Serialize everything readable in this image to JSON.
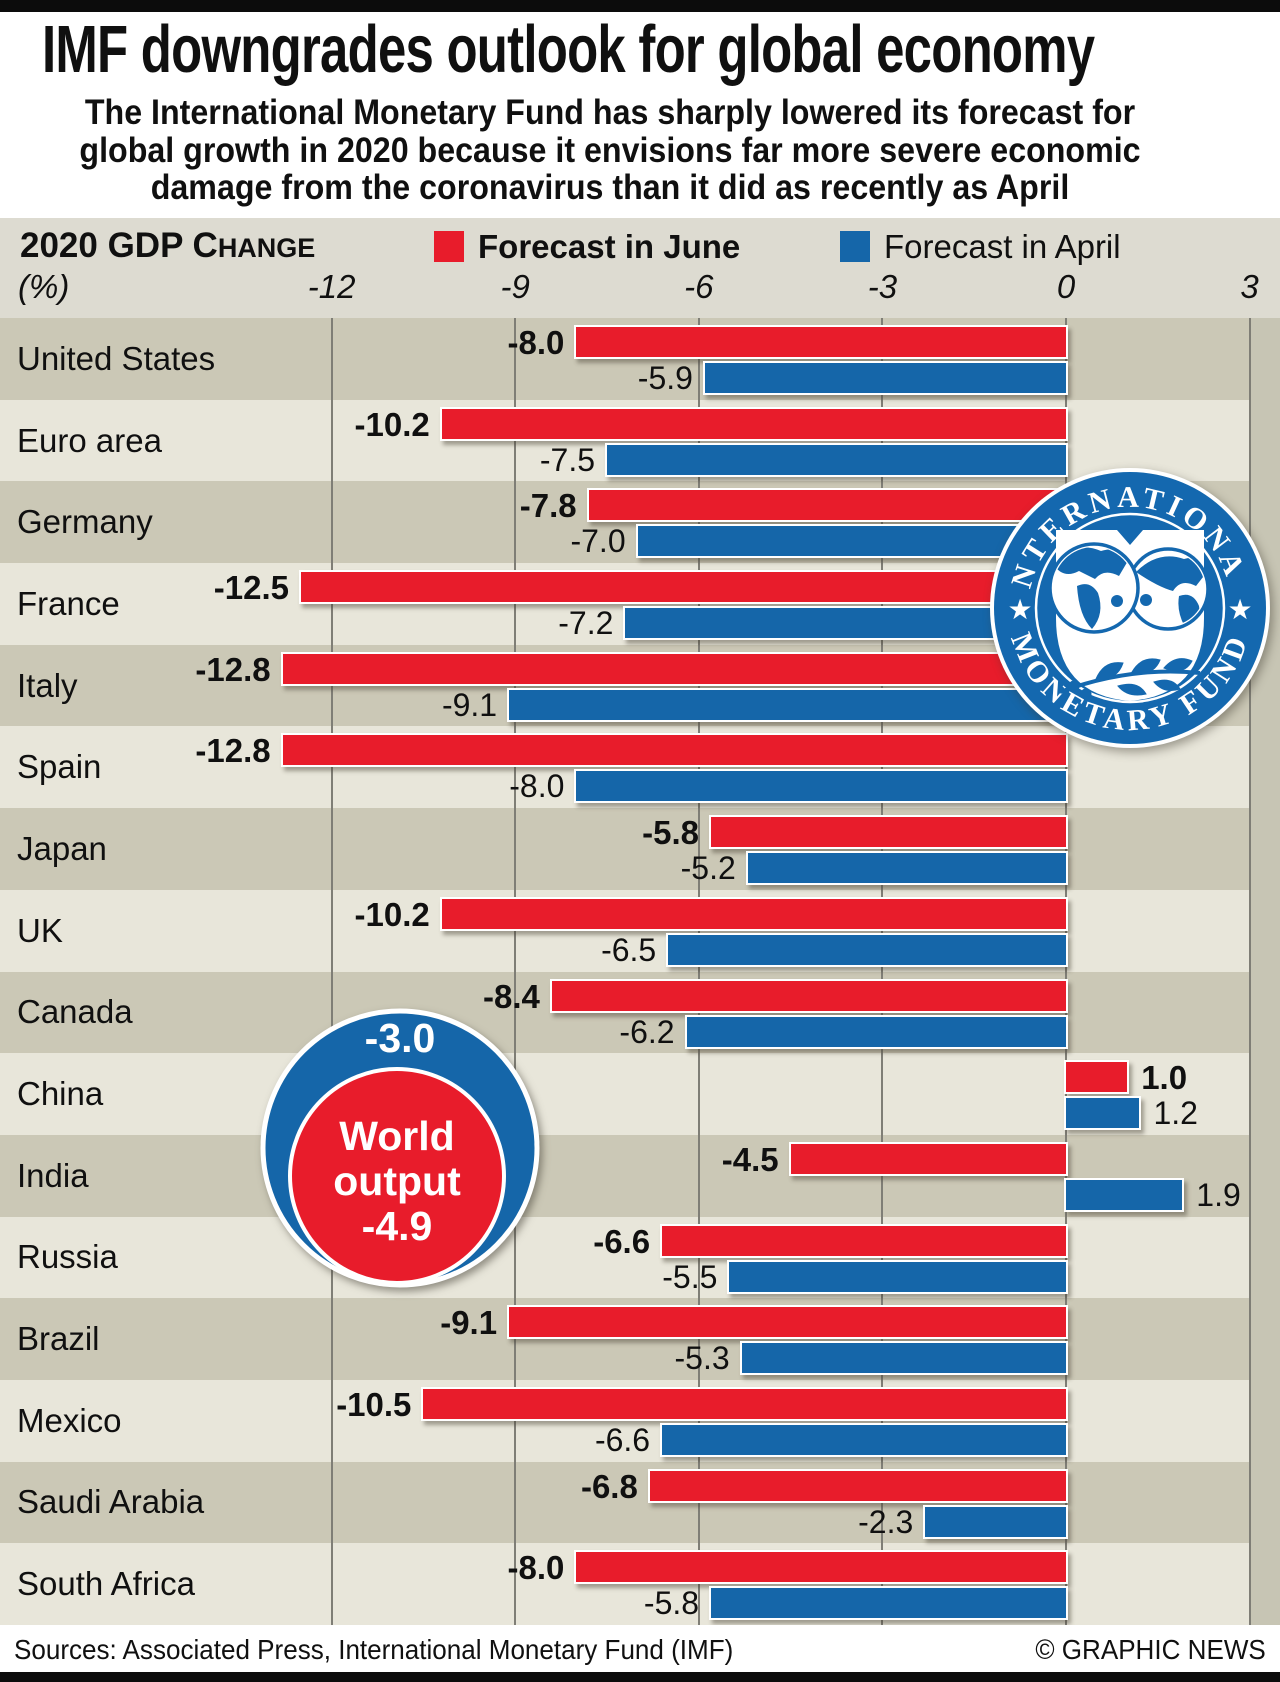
{
  "page": {
    "title": "IMF downgrades outlook for global economy",
    "subtitle_lines": [
      "The International Monetary Fund has sharply lowered its forecast for",
      "global growth in 2020 because it envisions far more severe economic",
      "damage from the coronavirus than it did as recently as April"
    ],
    "source_left": "Sources: Associated Press, International Monetary Fund (IMF)",
    "source_right": "© GRAPHIC NEWS"
  },
  "legend": {
    "axis_title_main": "2020 GDP C",
    "axis_title_small": "HANGE",
    "unit_label": "(%)",
    "june_label": "Forecast in June",
    "april_label": "Forecast in April"
  },
  "colors": {
    "june": "#e81c2b",
    "april": "#1566a9",
    "logo_blue": "#1468af",
    "row_dark": "#cbc8b6",
    "row_light": "#e8e6da",
    "header_band": "#dddbd1",
    "right_strip": "#c7c5b4",
    "gridline": "#7f7e76"
  },
  "world_circle": {
    "april_value": "-3.0",
    "label_line1": "World",
    "label_line2": "output",
    "june_value": "-4.9"
  },
  "logo": {
    "top_text": "INTERNATIONAL",
    "bottom_text": "MONETARY FUND",
    "star": "★"
  },
  "chart_data": {
    "type": "bar",
    "orientation": "horizontal",
    "title": "2020 GDP change (%)",
    "xlabel": "2020 GDP change (%)",
    "ylabel": "",
    "xlim": [
      -12,
      3
    ],
    "grid": true,
    "legend_position": "top",
    "ticks": [
      -12,
      -9,
      -6,
      -3,
      0,
      3
    ],
    "tick_labels": [
      "-12",
      "-9",
      "-6",
      "-3",
      "0",
      "3"
    ],
    "categories": [
      "United States",
      "Euro area",
      "Germany",
      "France",
      "Italy",
      "Spain",
      "Japan",
      "UK",
      "Canada",
      "China",
      "India",
      "Russia",
      "Brazil",
      "Mexico",
      "Saudi Arabia",
      "South Africa"
    ],
    "series": [
      {
        "name": "Forecast in June",
        "color": "#e81c2b",
        "values": [
          -8.0,
          -10.2,
          -7.8,
          -12.5,
          -12.8,
          -12.8,
          -5.8,
          -10.2,
          -8.4,
          1.0,
          -4.5,
          -6.6,
          -9.1,
          -10.5,
          -6.8,
          -8.0
        ],
        "labels": [
          "-8.0",
          "-10.2",
          "-7.8",
          "-12.5",
          "-12.8",
          "-12.8",
          "-5.8",
          "-10.2",
          "-8.4",
          "1.0",
          "-4.5",
          "-6.6",
          "-9.1",
          "-10.5",
          "-6.8",
          "-8.0"
        ]
      },
      {
        "name": "Forecast in April",
        "color": "#1566a9",
        "values": [
          -5.9,
          -7.5,
          -7.0,
          -7.2,
          -9.1,
          -8.0,
          -5.2,
          -6.5,
          -6.2,
          1.2,
          1.9,
          -5.5,
          -5.3,
          -6.6,
          -2.3,
          -5.8
        ],
        "labels": [
          "-5.9",
          "-7.5",
          "-7.0",
          "-7.2",
          "-9.1",
          "-8.0",
          "-5.2",
          "-6.5",
          "-6.2",
          "1.2",
          "1.9",
          "-5.5",
          "-5.3",
          "-6.6",
          "-2.3",
          "-5.8"
        ]
      }
    ],
    "annotations": [
      {
        "label": "World output",
        "june_value": -4.9,
        "april_value": -3.0
      }
    ]
  }
}
